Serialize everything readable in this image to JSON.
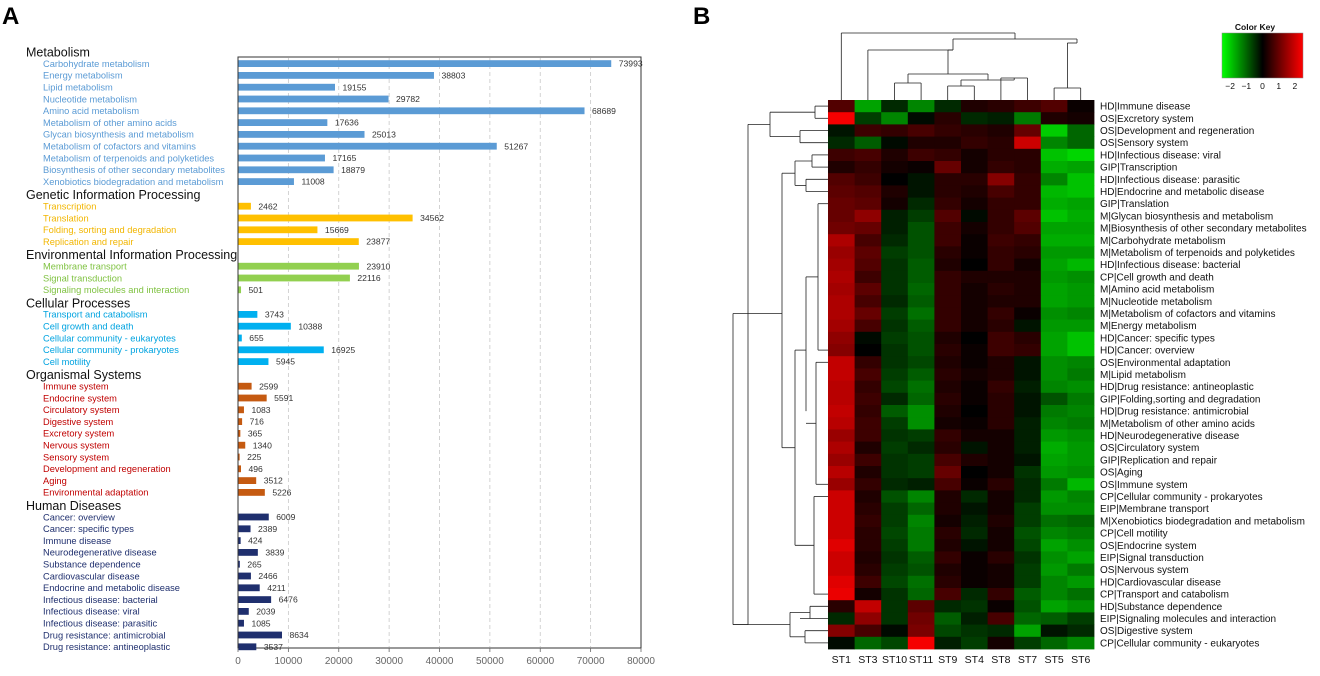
{
  "panels": {
    "a_letter": "A",
    "b_letter": "B"
  },
  "chart_data": [
    {
      "type": "bar",
      "orientation": "horizontal",
      "xlim": [
        0,
        80000
      ],
      "xticks": [
        "0",
        "10000",
        "20000",
        "30000",
        "40000",
        "50000",
        "60000",
        "70000",
        "80000"
      ],
      "xtick_values": [
        0,
        10000,
        20000,
        30000,
        40000,
        50000,
        60000,
        70000,
        80000
      ],
      "grid": "vertical dashed",
      "groups": [
        {
          "name": "Metabolism",
          "color": "#5b9bd5",
          "text_color": "#5b9bd5",
          "items": [
            {
              "label": "Carbohydrate metabolism",
              "value": 73993
            },
            {
              "label": "Energy metabolism",
              "value": 38803
            },
            {
              "label": "Lipid metabolism",
              "value": 19155
            },
            {
              "label": "Nucleotide metabolism",
              "value": 29782
            },
            {
              "label": "Amino acid metabolism",
              "value": 68689
            },
            {
              "label": "Metabolism of other amino acids",
              "value": 17636
            },
            {
              "label": "Glycan biosynthesis and metabolism",
              "value": 25013
            },
            {
              "label": "Metabolism of cofactors and vitamins",
              "value": 51267
            },
            {
              "label": "Metabolism of terpenoids and polyketides",
              "value": 17165
            },
            {
              "label": "Biosynthesis of other secondary metabolites",
              "value": 18879
            },
            {
              "label": "Xenobiotics biodegradation and metabolism",
              "value": 11008
            }
          ]
        },
        {
          "name": "Genetic Information Processing",
          "color": "#ffc000",
          "text_color": "#f2b600",
          "items": [
            {
              "label": "Transcription",
              "value": 2462
            },
            {
              "label": "Translation",
              "value": 34562
            },
            {
              "label": "Folding, sorting and degradation",
              "value": 15669
            },
            {
              "label": "Replication and repair",
              "value": 23877
            }
          ]
        },
        {
          "name": "Environmental Information Processing",
          "color": "#92d050",
          "text_color": "#7fc241",
          "items": [
            {
              "label": "Membrane transport",
              "value": 23910
            },
            {
              "label": "Signal transduction",
              "value": 22116
            },
            {
              "label": "Signaling molecules and interaction",
              "value": 501
            }
          ]
        },
        {
          "name": "Cellular Processes",
          "color": "#00b0f0",
          "text_color": "#00a3e0",
          "items": [
            {
              "label": "Transport and catabolism",
              "value": 3743
            },
            {
              "label": "Cell growth and death",
              "value": 10388
            },
            {
              "label": "Cellular community - eukaryotes",
              "value": 655
            },
            {
              "label": "Cellular community - prokaryotes",
              "value": 16925
            },
            {
              "label": "Cell motility",
              "value": 5945
            }
          ]
        },
        {
          "name": "Organismal Systems",
          "color": "#c55a11",
          "text_color": "#c00000",
          "items": [
            {
              "label": "Immune system",
              "value": 2599
            },
            {
              "label": "Endocrine system",
              "value": 5591
            },
            {
              "label": "Circulatory system",
              "value": 1083
            },
            {
              "label": "Digestive system",
              "value": 716
            },
            {
              "label": "Excretory system",
              "value": 365
            },
            {
              "label": "Nervous system",
              "value": 1340
            },
            {
              "label": "Sensory system",
              "value": 225
            },
            {
              "label": "Development and regeneration",
              "value": 496
            },
            {
              "label": "Aging",
              "value": 3512
            },
            {
              "label": "Environmental adaptation",
              "value": 5226
            }
          ]
        },
        {
          "name": "Human Diseases",
          "color": "#1f2f6e",
          "text_color": "#1f2f6e",
          "items": [
            {
              "label": "Cancer: overview",
              "value": 6009
            },
            {
              "label": "Cancer: specific types",
              "value": 2389
            },
            {
              "label": "Immune disease",
              "value": 424
            },
            {
              "label": "Neurodegenerative disease",
              "value": 3839
            },
            {
              "label": "Substance dependence",
              "value": 265
            },
            {
              "label": "Cardiovascular disease",
              "value": 2466
            },
            {
              "label": "Endocrine and metabolic disease",
              "value": 4211
            },
            {
              "label": "Infectious disease: bacterial",
              "value": 6476
            },
            {
              "label": "Infectious disease: viral",
              "value": 2039
            },
            {
              "label": "Infectious disease: parasitic",
              "value": 1085
            },
            {
              "label": "Drug resistance: antimicrobial",
              "value": 8634
            },
            {
              "label": "Drug resistance: antineoplastic",
              "value": 3537
            }
          ]
        }
      ]
    },
    {
      "type": "heatmap",
      "color_key": {
        "title": "Color Key",
        "ticks": [
          "−2",
          "−1",
          "0",
          "1",
          "2"
        ],
        "range": [
          -2.5,
          2.5
        ],
        "low_color": "#00ff00",
        "mid_color": "#000000",
        "high_color": "#ff0000"
      },
      "columns": [
        "ST1",
        "ST3",
        "ST10",
        "ST11",
        "ST9",
        "ST4",
        "ST8",
        "ST7",
        "ST5",
        "ST6"
      ],
      "rows": [
        "HD|Immune disease",
        "OS|Excretory system",
        "OS|Development and regeneration",
        "OS|Sensory system",
        "HD|Infectious disease: viral",
        "GIP|Transcription",
        "HD|Infectious disease: parasitic",
        "HD|Endocrine and metabolic disease",
        "GIP|Translation",
        "M|Glycan biosynthesis and metabolism",
        "M|Biosynthesis of other secondary metabolites",
        "M|Carbohydrate metabolism",
        "M|Metabolism of terpenoids and polyketides",
        "HD|Infectious disease: bacterial",
        "CP|Cell growth and death",
        "M|Amino acid metabolism",
        "M|Nucleotide metabolism",
        "M|Metabolism of cofactors and vitamins",
        "M|Energy metabolism",
        "HD|Cancer: specific types",
        "HD|Cancer: overview",
        "OS|Environmental adaptation",
        "M|Lipid metabolism",
        "HD|Drug resistance: antineoplastic",
        "GIP|Folding,sorting and degradation",
        "HD|Drug resistance: antimicrobial",
        "M|Metabolism of other amino acids",
        "HD|Neurodegenerative disease",
        "OS|Circulatory system",
        "GIP|Replication and repair",
        "OS|Aging",
        "OS|Immune system",
        "CP|Cellular community - prokaryotes",
        "EIP|Membrane transport",
        "M|Xenobiotics biodegradation and metabolism",
        "CP|Cell motility",
        "OS|Endocrine system",
        "EIP|Signal transduction",
        "OS|Nervous system",
        "HD|Cardiovascular disease",
        "CP|Transport and catabolism",
        "HD|Substance dependence",
        "EIP|Signaling molecules and interaction",
        "OS|Digestive system",
        "CP|Cellular community - eukaryotes"
      ],
      "values": [
        [
          0.8,
          -1.6,
          -0.4,
          -1.3,
          -0.4,
          0.3,
          0.4,
          0.6,
          0.8,
          0.1
        ],
        [
          2.4,
          -0.6,
          -1.3,
          -0.1,
          0.4,
          -0.4,
          -0.3,
          -1.2,
          0.3,
          0.2
        ],
        [
          -0.2,
          0.6,
          0.5,
          0.7,
          0.5,
          0.4,
          0.3,
          1.0,
          -2.0,
          -1.0
        ],
        [
          -0.4,
          -0.9,
          -0.1,
          0.3,
          0.3,
          0.5,
          0.4,
          2.0,
          -1.3,
          -1.0
        ],
        [
          0.6,
          0.7,
          0.3,
          0.6,
          0.5,
          0.2,
          0.4,
          0.4,
          -1.9,
          -2.1
        ],
        [
          0.3,
          0.5,
          0.2,
          0.1,
          1.0,
          0.2,
          0.5,
          0.4,
          -1.7,
          -1.6
        ],
        [
          0.8,
          0.6,
          0.0,
          -0.2,
          0.4,
          0.4,
          1.3,
          0.5,
          -1.3,
          -1.9
        ],
        [
          0.9,
          0.8,
          0.3,
          -0.2,
          0.4,
          0.3,
          0.7,
          0.5,
          -1.8,
          -1.9
        ],
        [
          1.0,
          0.9,
          0.2,
          -0.4,
          0.5,
          0.2,
          0.5,
          0.5,
          -1.7,
          -1.6
        ],
        [
          1.0,
          1.4,
          -0.3,
          -0.6,
          0.8,
          -0.1,
          0.5,
          0.9,
          -1.9,
          -1.7
        ],
        [
          1.1,
          1.0,
          -0.3,
          -0.8,
          0.6,
          0.2,
          0.5,
          0.8,
          -1.6,
          -1.6
        ],
        [
          1.7,
          0.7,
          -0.4,
          -0.8,
          0.6,
          0.1,
          0.6,
          0.5,
          -1.7,
          -1.7
        ],
        [
          1.5,
          0.9,
          -0.6,
          -0.8,
          0.4,
          0.1,
          0.5,
          0.4,
          -1.5,
          -1.5
        ],
        [
          1.6,
          0.8,
          -0.5,
          -0.9,
          0.3,
          0.0,
          0.5,
          0.2,
          -1.6,
          -1.8
        ],
        [
          1.7,
          0.6,
          -0.5,
          -0.9,
          0.5,
          0.3,
          0.3,
          0.3,
          -1.5,
          -1.4
        ],
        [
          1.6,
          0.9,
          -0.5,
          -1.0,
          0.5,
          0.2,
          0.4,
          0.3,
          -1.6,
          -1.5
        ],
        [
          1.7,
          0.7,
          -0.4,
          -0.9,
          0.5,
          0.2,
          0.3,
          0.3,
          -1.6,
          -1.5
        ],
        [
          1.7,
          1.0,
          -0.6,
          -1.1,
          0.5,
          0.2,
          0.5,
          0.1,
          -1.4,
          -1.3
        ],
        [
          1.6,
          0.7,
          -0.5,
          -0.9,
          0.5,
          0.2,
          0.4,
          -0.2,
          -1.5,
          -1.5
        ],
        [
          1.4,
          -0.1,
          -0.6,
          -0.8,
          0.3,
          0.0,
          0.6,
          0.4,
          -1.6,
          -1.9
        ],
        [
          1.3,
          0.0,
          -0.5,
          -0.8,
          0.4,
          0.1,
          0.6,
          0.5,
          -1.6,
          -1.9
        ],
        [
          1.9,
          0.5,
          -0.5,
          -0.7,
          0.3,
          0.1,
          0.3,
          -0.2,
          -1.4,
          -1.3
        ],
        [
          1.9,
          0.7,
          -0.6,
          -0.9,
          0.4,
          0.2,
          0.3,
          -0.2,
          -1.4,
          -1.2
        ],
        [
          1.8,
          0.5,
          -0.7,
          -1.1,
          0.3,
          0.1,
          0.5,
          -0.3,
          -1.3,
          -1.4
        ],
        [
          1.8,
          0.6,
          -0.4,
          -1.0,
          0.4,
          0.1,
          0.4,
          -0.2,
          -0.8,
          -1.2
        ],
        [
          1.9,
          0.5,
          -0.9,
          -1.4,
          0.3,
          0.0,
          0.4,
          -0.2,
          -1.2,
          -1.3
        ],
        [
          1.8,
          0.6,
          -0.6,
          -1.4,
          0.2,
          0.1,
          0.4,
          -0.3,
          -1.3,
          -1.2
        ],
        [
          1.5,
          0.6,
          -0.5,
          -0.6,
          0.5,
          0.2,
          0.2,
          -0.3,
          -1.5,
          -1.4
        ],
        [
          1.7,
          0.3,
          -0.6,
          -0.4,
          0.4,
          -0.2,
          0.2,
          -0.3,
          -1.7,
          -1.5
        ],
        [
          1.5,
          0.6,
          -0.5,
          -0.6,
          0.7,
          0.3,
          0.2,
          -0.2,
          -1.6,
          -1.5
        ],
        [
          1.8,
          0.3,
          -0.5,
          -0.6,
          1.0,
          0.0,
          0.2,
          -0.5,
          -1.5,
          -1.4
        ],
        [
          1.5,
          0.5,
          -0.4,
          -0.3,
          0.7,
          0.1,
          0.4,
          -0.4,
          -1.2,
          -1.8
        ],
        [
          2.0,
          0.3,
          -0.8,
          -1.3,
          0.3,
          -0.4,
          0.2,
          -0.4,
          -1.5,
          -1.3
        ],
        [
          2.0,
          0.4,
          -0.6,
          -1.0,
          0.3,
          -0.2,
          0.2,
          -0.6,
          -1.4,
          -1.4
        ],
        [
          2.0,
          0.5,
          -0.6,
          -1.3,
          0.2,
          -0.3,
          0.3,
          -0.6,
          -1.1,
          -1.0
        ],
        [
          2.0,
          0.4,
          -0.7,
          -1.2,
          0.4,
          -0.4,
          0.2,
          -0.8,
          -1.3,
          -1.2
        ],
        [
          2.2,
          0.4,
          -0.6,
          -1.2,
          0.3,
          -0.2,
          0.2,
          -0.7,
          -1.6,
          -1.4
        ],
        [
          2.0,
          0.3,
          -0.5,
          -0.9,
          0.5,
          0.1,
          0.4,
          -0.5,
          -1.4,
          -1.6
        ],
        [
          2.0,
          0.4,
          -0.6,
          -0.8,
          0.3,
          0.1,
          0.2,
          -0.6,
          -1.5,
          -1.2
        ],
        [
          2.2,
          0.6,
          -0.7,
          -1.1,
          0.4,
          0.1,
          0.2,
          -0.6,
          -1.3,
          -1.5
        ],
        [
          2.3,
          0.2,
          -0.5,
          -1.0,
          0.7,
          -0.4,
          0.5,
          -0.9,
          -1.3,
          -1.1
        ],
        [
          0.4,
          1.9,
          -0.5,
          0.9,
          -0.4,
          -0.5,
          0.1,
          -0.8,
          -1.6,
          -1.4
        ],
        [
          -0.4,
          1.4,
          -0.5,
          1.1,
          -0.9,
          -0.3,
          0.7,
          -1.0,
          -0.9,
          -0.6
        ],
        [
          1.3,
          0.7,
          -0.1,
          1.2,
          -0.7,
          -0.5,
          -0.4,
          -1.6,
          -0.2,
          -0.4
        ],
        [
          -0.1,
          -1.0,
          -0.7,
          2.4,
          -0.3,
          -0.6,
          0.2,
          -0.6,
          -1.0,
          -1.3
        ]
      ]
    }
  ]
}
